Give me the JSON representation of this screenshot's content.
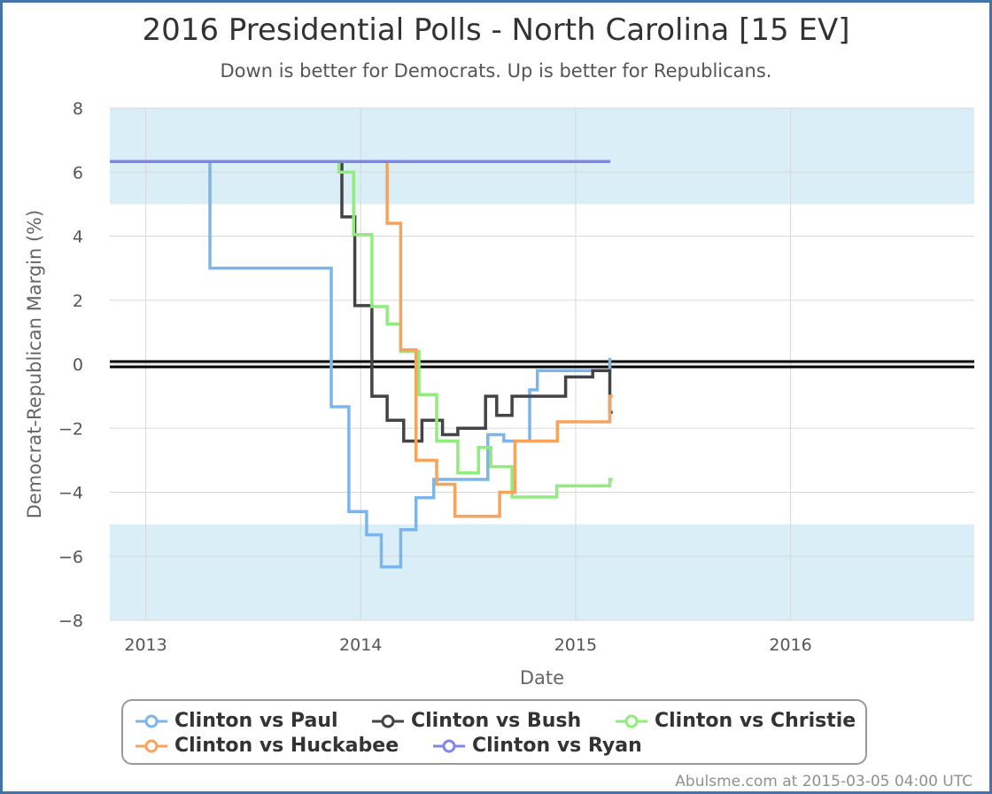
{
  "chart_data": {
    "type": "line",
    "title": "2016 Presidential Polls - North Carolina [15 EV]",
    "subtitle": "Down is better for Democrats. Up is better for Republicans.",
    "xlabel": "Date",
    "ylabel": "Democrat-Republican Margin (%)",
    "xlim": [
      "2012-11-01",
      "2016-11-08"
    ],
    "ylim": [
      -8,
      8
    ],
    "x_ticks": [
      "2013",
      "2014",
      "2015",
      "2016"
    ],
    "y_ticks": [
      8,
      6,
      4,
      2,
      0,
      -2,
      -4,
      -6,
      -8
    ],
    "y_tick_labels": [
      "8",
      "6",
      "4",
      "2",
      "0",
      "−2",
      "−4",
      "−6",
      "−8"
    ],
    "shaded_bands": [
      [
        5,
        8
      ],
      [
        -8,
        -5
      ]
    ],
    "zero_line": true,
    "grid": true,
    "step": true,
    "legend_position": "bottom",
    "series": [
      {
        "name": "Clinton vs Paul",
        "color": "#7cb5ec",
        "points": [
          [
            "2012-11-01",
            6.33
          ],
          [
            "2013-04-20",
            3.0
          ],
          [
            "2013-11-12",
            -1.33
          ],
          [
            "2013-12-12",
            -4.6
          ],
          [
            "2014-01-11",
            -5.33
          ],
          [
            "2014-02-05",
            -6.33
          ],
          [
            "2014-03-10",
            -5.17
          ],
          [
            "2014-04-05",
            -4.17
          ],
          [
            "2014-05-05",
            -3.6
          ],
          [
            "2014-08-05",
            -2.2
          ],
          [
            "2014-09-01",
            -2.4
          ],
          [
            "2014-10-15",
            -0.8
          ],
          [
            "2014-10-28",
            -0.2
          ],
          [
            "2015-02-28",
            0.2
          ]
        ]
      },
      {
        "name": "Clinton vs Bush",
        "color": "#434348",
        "points": [
          [
            "2013-11-20",
            6.33
          ],
          [
            "2013-11-30",
            4.6
          ],
          [
            "2013-12-22",
            1.83
          ],
          [
            "2014-01-20",
            -1.0
          ],
          [
            "2014-02-15",
            -1.75
          ],
          [
            "2014-03-15",
            -2.4
          ],
          [
            "2014-04-15",
            -1.75
          ],
          [
            "2014-05-20",
            -2.2
          ],
          [
            "2014-06-15",
            -2.0
          ],
          [
            "2014-08-01",
            -1.0
          ],
          [
            "2014-08-20",
            -1.6
          ],
          [
            "2014-09-15",
            -1.0
          ],
          [
            "2014-12-15",
            -0.4
          ],
          [
            "2015-01-30",
            -0.2
          ],
          [
            "2015-02-28",
            -1.5
          ],
          [
            "2015-03-05",
            -1.5
          ]
        ]
      },
      {
        "name": "Clinton vs Christie",
        "color": "#90ed7d",
        "points": [
          [
            "2013-11-18",
            6.33
          ],
          [
            "2013-11-25",
            6.0
          ],
          [
            "2013-12-20",
            4.05
          ],
          [
            "2014-01-20",
            1.8
          ],
          [
            "2014-02-15",
            1.25
          ],
          [
            "2014-03-10",
            0.4
          ],
          [
            "2014-04-10",
            -0.95
          ],
          [
            "2014-05-10",
            -2.4
          ],
          [
            "2014-06-15",
            -3.4
          ],
          [
            "2014-07-20",
            -2.6
          ],
          [
            "2014-08-10",
            -3.2
          ],
          [
            "2014-09-15",
            -4.15
          ],
          [
            "2014-11-30",
            -3.8
          ],
          [
            "2015-02-28",
            -3.6
          ],
          [
            "2015-03-05",
            -3.6
          ]
        ]
      },
      {
        "name": "Clinton vs Huckabee",
        "color": "#f7a35c",
        "points": [
          [
            "2014-02-10",
            6.33
          ],
          [
            "2014-02-15",
            4.4
          ],
          [
            "2014-03-10",
            0.45
          ],
          [
            "2014-04-05",
            -3.0
          ],
          [
            "2014-05-10",
            -3.75
          ],
          [
            "2014-06-10",
            -4.75
          ],
          [
            "2014-08-25",
            -4.0
          ],
          [
            "2014-09-20",
            -2.4
          ],
          [
            "2014-12-01",
            -1.8
          ],
          [
            "2015-02-28",
            -1.0
          ],
          [
            "2015-03-05",
            -1.0
          ]
        ]
      },
      {
        "name": "Clinton vs Ryan",
        "color": "#8085e9",
        "points": [
          [
            "2012-11-01",
            6.33
          ],
          [
            "2015-03-01",
            6.33
          ]
        ]
      }
    ]
  },
  "legend": {
    "items": [
      {
        "label": "Clinton vs Paul",
        "color": "#7cb5ec"
      },
      {
        "label": "Clinton vs Bush",
        "color": "#434348"
      },
      {
        "label": "Clinton vs Christie",
        "color": "#90ed7d"
      },
      {
        "label": "Clinton vs Huckabee",
        "color": "#f7a35c"
      },
      {
        "label": "Clinton vs Ryan",
        "color": "#8085e9"
      }
    ]
  },
  "footer": {
    "credit": "Abulsme.com at 2015-03-05 04:00 UTC"
  }
}
